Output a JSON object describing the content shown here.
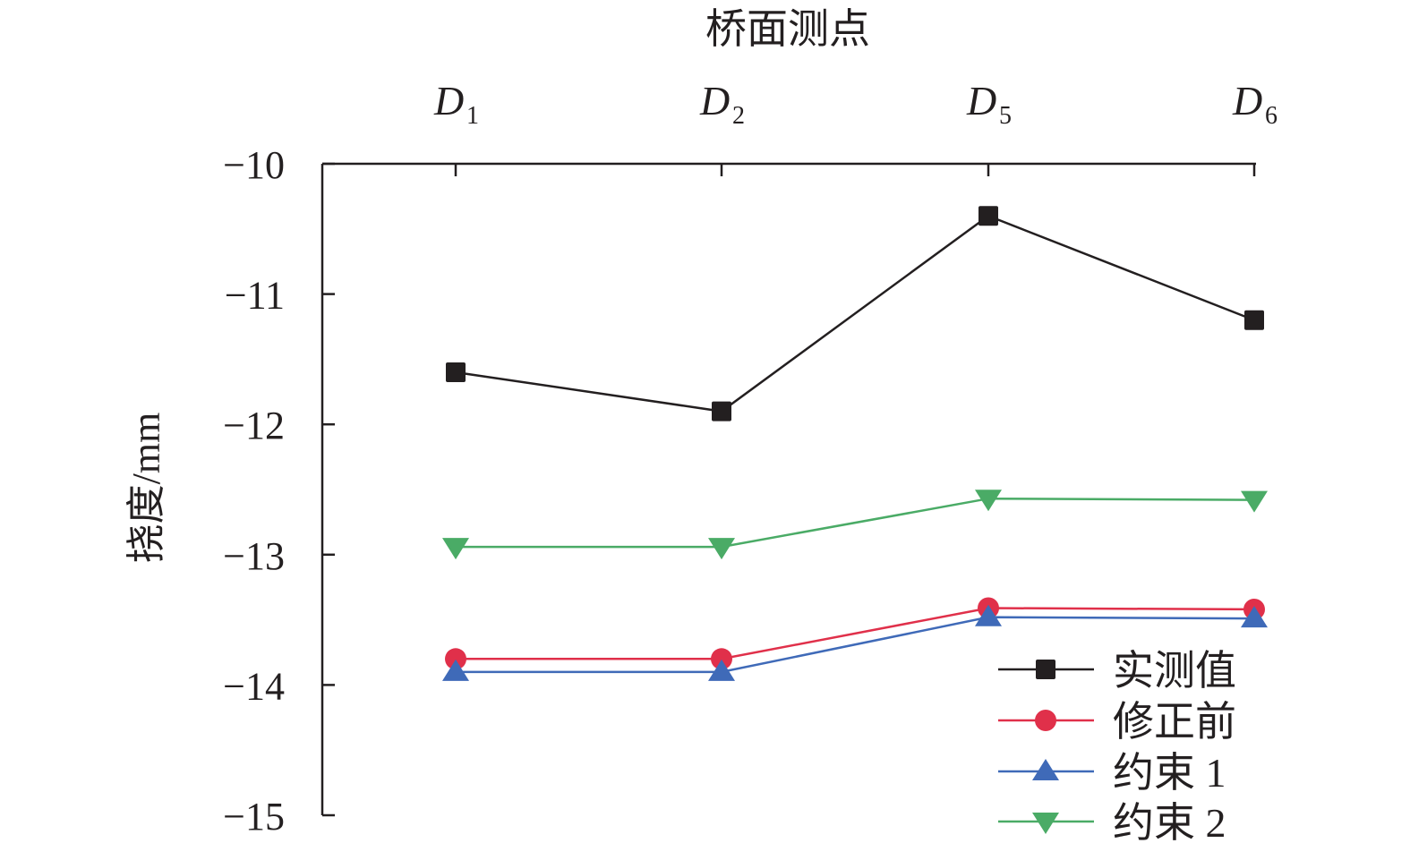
{
  "chart_data": {
    "type": "line",
    "title": "",
    "xlabel": "桥面测点",
    "ylabel": "挠度/mm",
    "x_axis_position": "top",
    "categories": [
      {
        "base": "D",
        "sub": "1"
      },
      {
        "base": "D",
        "sub": "2"
      },
      {
        "base": "D",
        "sub": "5"
      },
      {
        "base": "D",
        "sub": "6"
      }
    ],
    "ylim": [
      -15,
      -10
    ],
    "yticks": [
      -10,
      -11,
      -12,
      -13,
      -14,
      -15
    ],
    "ytick_labels": [
      "−10",
      "−11",
      "−12",
      "−13",
      "−14",
      "−15"
    ],
    "grid": false,
    "legend_position": "bottom-right",
    "series": [
      {
        "name": "实测值",
        "marker": "square",
        "color": "#231f20",
        "values": [
          -11.6,
          -11.9,
          -10.4,
          -11.2
        ]
      },
      {
        "name": "修正前",
        "marker": "circle",
        "color": "#e0304a",
        "values": [
          -13.8,
          -13.8,
          -13.41,
          -13.42
        ]
      },
      {
        "name": "约束 1",
        "marker": "triangle-up",
        "color": "#3f6ab8",
        "values": [
          -13.9,
          -13.9,
          -13.48,
          -13.49
        ]
      },
      {
        "name": "约束 2",
        "marker": "triangle-down",
        "color": "#4aab66",
        "values": [
          -12.94,
          -12.94,
          -12.57,
          -12.58
        ]
      }
    ]
  }
}
